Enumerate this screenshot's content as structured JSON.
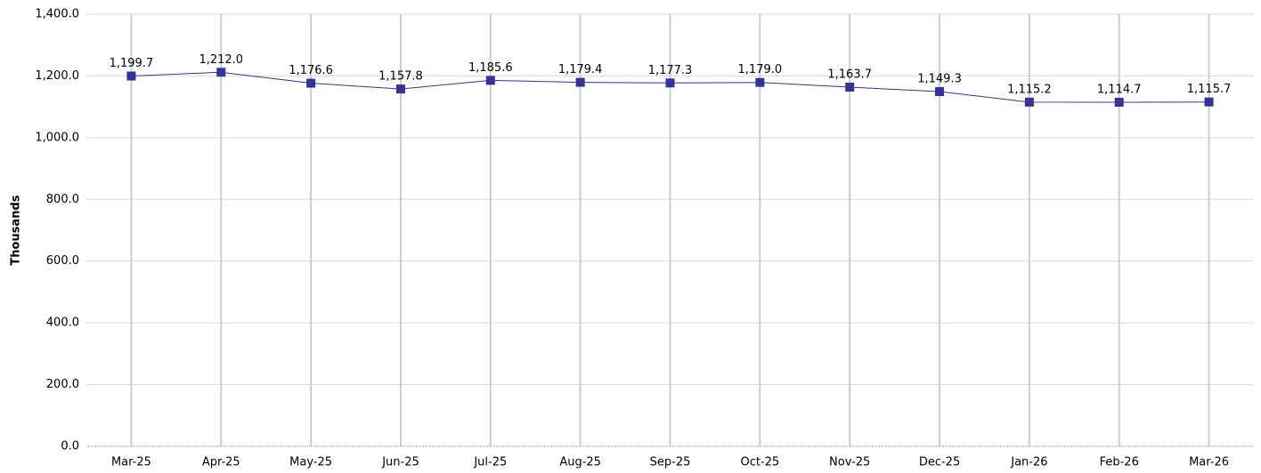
{
  "chart_data": {
    "type": "line",
    "y_label": "Thousands",
    "categories": [
      "Mar-25",
      "Apr-25",
      "May-25",
      "Jun-25",
      "Jul-25",
      "Aug-25",
      "Sep-25",
      "Oct-25",
      "Nov-25",
      "Dec-25",
      "Jan-26",
      "Feb-26",
      "Mar-26"
    ],
    "series": [
      {
        "color": "#333399",
        "values": [
          1199.7,
          1212.0,
          1176.6,
          1157.8,
          1185.6,
          1179.4,
          1177.3,
          1179.0,
          1163.7,
          1149.3,
          1115.2,
          1114.7,
          1115.7
        ],
        "value_labels": [
          "1,199.7",
          "1,212.0",
          "1,176.6",
          "1,157.8",
          "1,185.6",
          "1,179.4",
          "1,177.3",
          "1,179.0",
          "1,163.7",
          "1,149.3",
          "1,115.2",
          "1,114.7",
          "1,115.7"
        ]
      }
    ],
    "ylim": [
      0,
      1400
    ],
    "yticks": [
      {
        "value": 0,
        "label": "0.0"
      },
      {
        "value": 200,
        "label": "200.0"
      },
      {
        "value": 400,
        "label": "400.0"
      },
      {
        "value": 600,
        "label": "600.0"
      },
      {
        "value": 800,
        "label": "800.0"
      },
      {
        "value": 1000,
        "label": "1,000.0"
      },
      {
        "value": 1200,
        "label": "1,200.0"
      },
      {
        "value": 1400,
        "label": "1,400.0"
      }
    ],
    "grid": true
  }
}
